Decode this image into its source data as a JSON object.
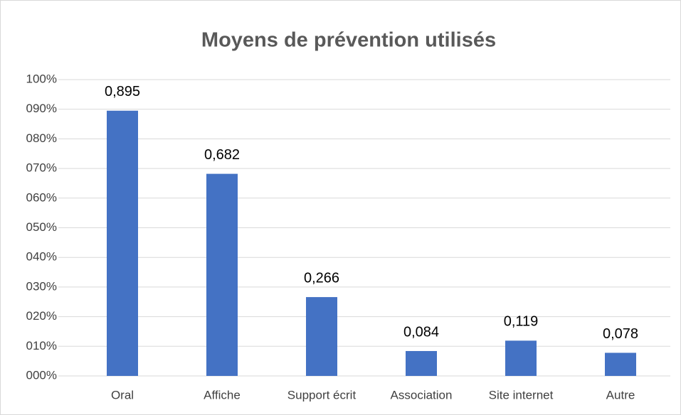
{
  "chart_data": {
    "type": "bar",
    "title": "Moyens de prévention utilisés",
    "categories": [
      "Oral",
      "Affiche",
      "Support écrit",
      "Association",
      "Site internet",
      "Autre"
    ],
    "values": [
      89.5,
      68.2,
      26.6,
      8.4,
      11.9,
      7.8
    ],
    "value_labels": [
      "0,895",
      "0,682",
      "0,266",
      "0,084",
      "0,119",
      "0,078"
    ],
    "color": "#4472c4",
    "ylim": [
      0,
      100
    ],
    "yticks": [
      {
        "value": 0,
        "label": "000%"
      },
      {
        "value": 10,
        "label": "010%"
      },
      {
        "value": 20,
        "label": "020%"
      },
      {
        "value": 30,
        "label": "030%"
      },
      {
        "value": 40,
        "label": "040%"
      },
      {
        "value": 50,
        "label": "050%"
      },
      {
        "value": 60,
        "label": "060%"
      },
      {
        "value": 70,
        "label": "070%"
      },
      {
        "value": 80,
        "label": "080%"
      },
      {
        "value": 90,
        "label": "090%"
      },
      {
        "value": 100,
        "label": "100%"
      }
    ],
    "grid": true
  }
}
